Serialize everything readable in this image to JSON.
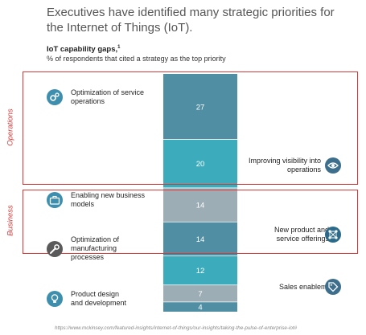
{
  "title": "Executives have identified many strategic priorities for the Internet of Things (IoT).",
  "subtitle": "IoT capability gaps,",
  "subtitle_footnote": "1",
  "subnote": "% of respondents that cited a strategy as the top priority",
  "source": "https://www.mckinsey.com/featured-insights/internet-of-things/our-insights/taking-the-pulse-of-enterprise-iot#",
  "groups": [
    {
      "label": "Operations"
    },
    {
      "label": "Business"
    }
  ],
  "chart_data": {
    "type": "bar",
    "orientation": "stacked-vertical",
    "categories": [
      "Optimization of service operations",
      "Improving visibility into operations",
      "Enabling new business models",
      "New product and service offerings",
      "Optimization of manufacturing processes",
      "Sales enablement",
      "Product design and development"
    ],
    "values": [
      27,
      20,
      14,
      14,
      12,
      7,
      4
    ],
    "colors": [
      "#4f8ea3",
      "#3cacbc",
      "#9cadb5",
      "#4f8ea3",
      "#3cacbc",
      "#9cadb5",
      "#4f8ea3"
    ],
    "title": "IoT capability gaps",
    "xlabel": "",
    "ylabel": ""
  },
  "items": [
    {
      "label_lines": [
        "Optimization of service",
        "operations"
      ],
      "icon": "gears-icon",
      "color": "#3d8fad"
    },
    {
      "label_lines": [
        "Improving visibility into",
        "operations"
      ],
      "icon": "eye-icon",
      "color": "#3d6f8c"
    },
    {
      "label_lines": [
        "Enabling new business",
        "models"
      ],
      "icon": "briefcase-icon",
      "color": "#3d8fad"
    },
    {
      "label_lines": [
        "New product and",
        "service offerings"
      ],
      "icon": "network-icon",
      "color": "#2c6a8a"
    },
    {
      "label_lines": [
        "Optimization of",
        "manufacturing",
        "processes"
      ],
      "icon": "wrench-icon",
      "color": "#5a5a5a"
    },
    {
      "label_lines": [
        "Sales enablement"
      ],
      "icon": "tag-icon",
      "color": "#3d6f8c"
    },
    {
      "label_lines": [
        "Product design",
        "and development"
      ],
      "icon": "lightbulb-icon",
      "color": "#3d8fad"
    }
  ]
}
